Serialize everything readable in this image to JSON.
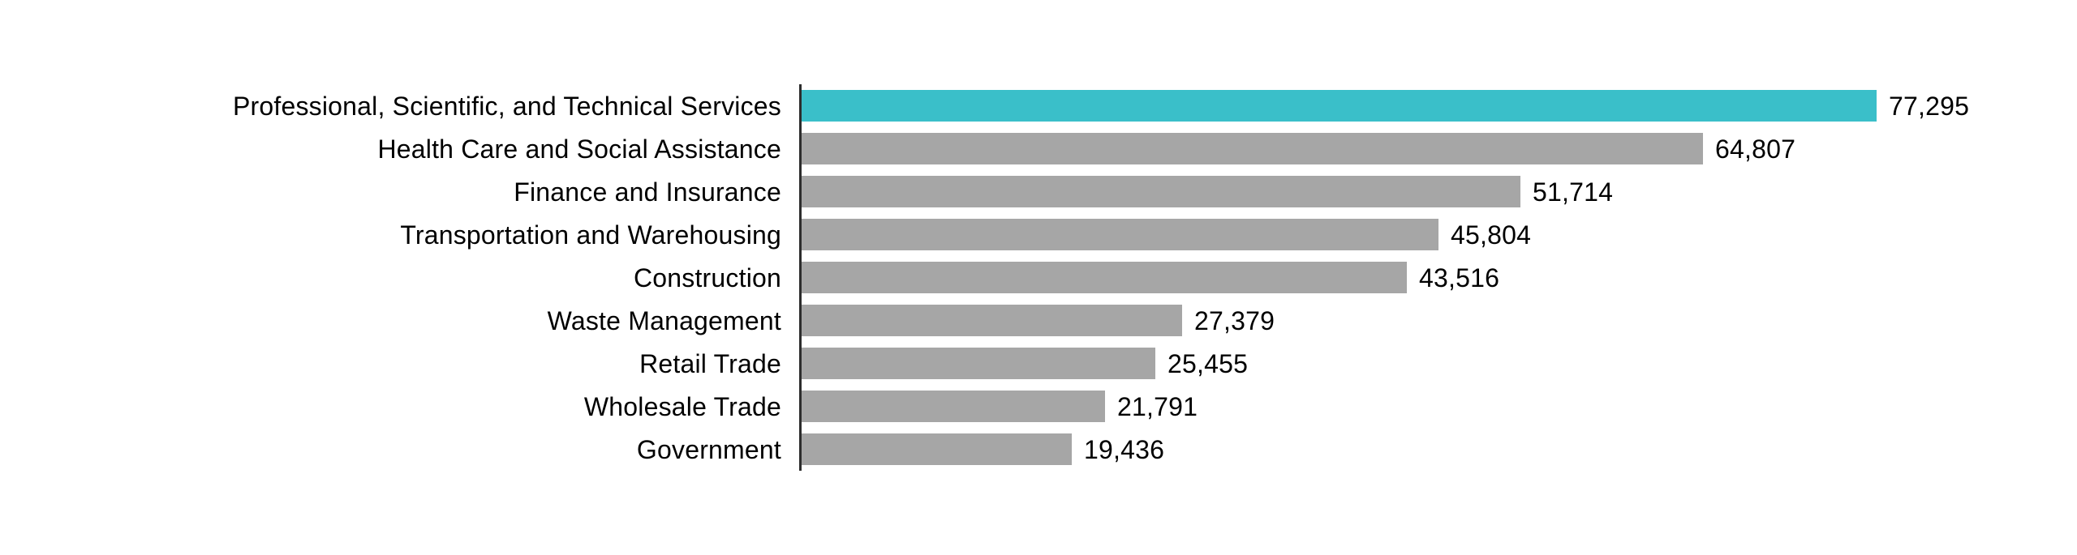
{
  "chart_data": {
    "type": "bar",
    "orientation": "horizontal",
    "title": "",
    "xlabel": "",
    "ylabel": "",
    "categories": [
      "Professional, Scientific, and Technical Services",
      "Health Care and Social Assistance",
      "Finance and Insurance",
      "Transportation and Warehousing",
      "Construction",
      "Waste Management",
      "Retail Trade",
      "Wholesale Trade",
      "Government"
    ],
    "values": [
      77295,
      64807,
      51714,
      45804,
      43516,
      27379,
      25455,
      21791,
      19436
    ],
    "value_labels": [
      "77,295",
      "64,807",
      "51,714",
      "45,804",
      "43,516",
      "27,379",
      "25,455",
      "21,791",
      "19,436"
    ],
    "xlim": [
      0,
      91900
    ],
    "grid": false,
    "legend": false,
    "highlight_index": 0,
    "colors": {
      "highlight": "#3ABFC9",
      "default": "#A6A6A6",
      "axis": "#2D2D2D",
      "text": "#000000",
      "background": "#FFFFFF"
    }
  }
}
